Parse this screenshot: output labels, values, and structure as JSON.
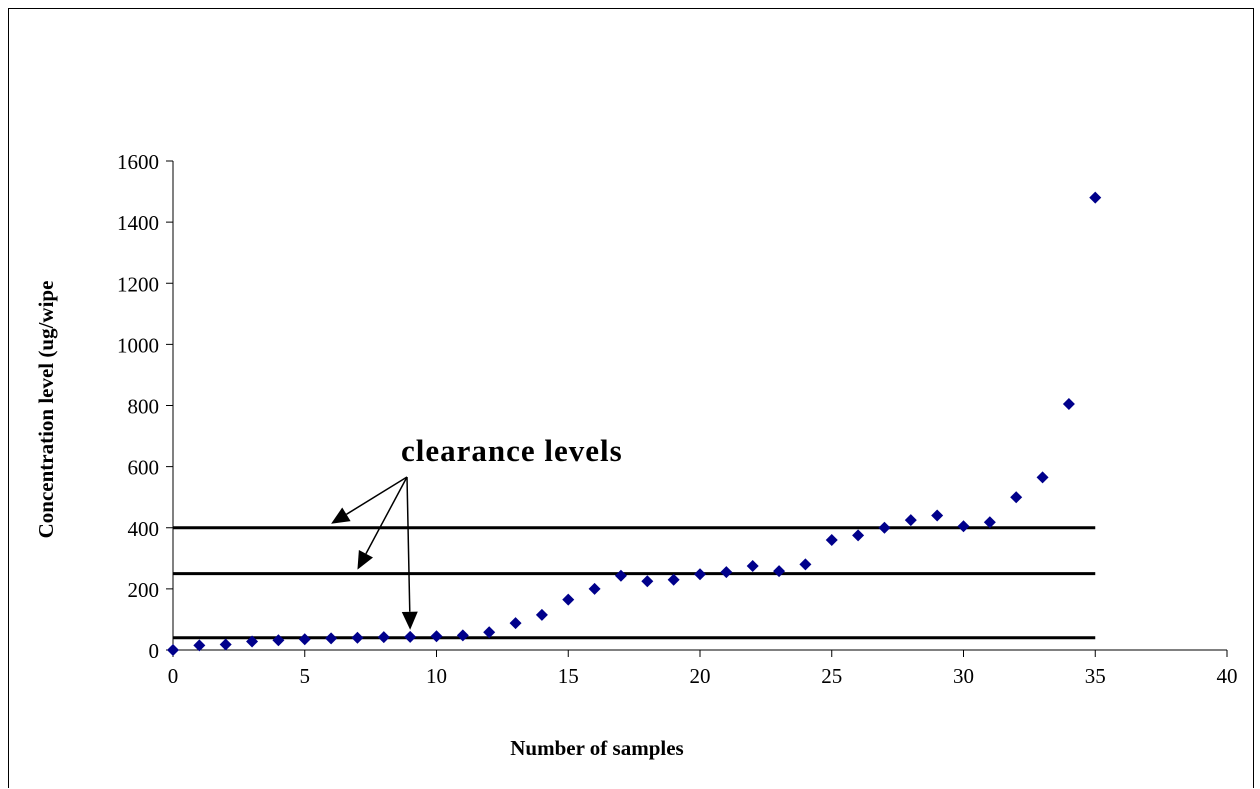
{
  "chart_data": {
    "type": "scatter",
    "title": "",
    "xlabel": "Number of samples",
    "ylabel": "Concentration level (ug/wipe",
    "xlim": [
      0,
      40
    ],
    "ylim": [
      0,
      1600
    ],
    "x_ticks": [
      0,
      5,
      10,
      15,
      20,
      25,
      30,
      35,
      40
    ],
    "y_ticks": [
      0,
      200,
      400,
      600,
      800,
      1000,
      1200,
      1400,
      1600
    ],
    "grid": false,
    "legend": "none",
    "marker": "diamond",
    "marker_color": "#00008B",
    "series": [
      {
        "x": [
          0,
          1,
          2,
          3,
          4,
          5,
          6,
          7,
          8,
          9,
          10,
          11,
          12,
          13,
          14,
          15,
          16,
          17,
          18,
          19,
          20,
          21,
          22,
          23,
          24,
          25,
          26,
          27,
          28,
          29,
          30,
          31,
          32,
          33,
          34,
          35
        ],
        "values": [
          0,
          15,
          18,
          28,
          32,
          35,
          38,
          40,
          42,
          43,
          45,
          48,
          58,
          88,
          115,
          165,
          200,
          243,
          225,
          230,
          248,
          255,
          275,
          258,
          280,
          360,
          375,
          400,
          425,
          440,
          405,
          418,
          500,
          565,
          805,
          1480
        ]
      }
    ],
    "reference_lines": [
      {
        "y": 400,
        "x_range": [
          0,
          35
        ]
      },
      {
        "y": 250,
        "x_range": [
          0,
          35
        ]
      },
      {
        "y": 40,
        "x_range": [
          0,
          35
        ]
      }
    ],
    "annotations": [
      {
        "text": "clearance levels",
        "arrows_to": [
          {
            "x": 6,
            "y": 400
          },
          {
            "x": 7,
            "y": 250
          },
          {
            "x": 9,
            "y": 40
          }
        ]
      }
    ]
  }
}
